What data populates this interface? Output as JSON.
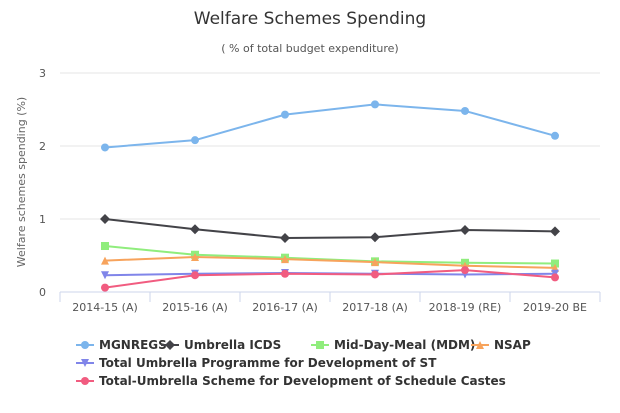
{
  "chart_data": {
    "type": "line",
    "title": "Welfare Schemes Spending",
    "subtitle": "( % of total budget expenditure)",
    "xlabel": "",
    "ylabel": "Welfare schemes spending (%)",
    "ylim": [
      0,
      3
    ],
    "yticks": [
      0,
      1,
      2,
      3
    ],
    "grid": true,
    "legend_position": "bottom",
    "categories": [
      "2014-15 (A)",
      "2015-16 (A)",
      "2016-17 (A)",
      "2017-18 (A)",
      "2018-19 (RE)",
      "2019-20 BE"
    ],
    "series": [
      {
        "name": "MGNREGS",
        "color": "#7cb5ec",
        "marker": "circle",
        "values": [
          1.98,
          2.08,
          2.43,
          2.57,
          2.48,
          2.14
        ]
      },
      {
        "name": "Umbrella ICDS",
        "color": "#434348",
        "marker": "diamond",
        "values": [
          1.0,
          0.86,
          0.74,
          0.75,
          0.85,
          0.83
        ]
      },
      {
        "name": "Mid-Day-Meal (MDM)",
        "color": "#90ed7d",
        "marker": "square",
        "values": [
          0.63,
          0.51,
          0.47,
          0.42,
          0.4,
          0.39
        ]
      },
      {
        "name": "NSAP",
        "color": "#f7a35c",
        "marker": "triangle",
        "values": [
          0.43,
          0.48,
          0.45,
          0.41,
          0.36,
          0.33
        ]
      },
      {
        "name": "Total Umbrella Programme for Development of ST",
        "color": "#8085e9",
        "marker": "triangle-down",
        "values": [
          0.23,
          0.25,
          0.26,
          0.25,
          0.24,
          0.25
        ]
      },
      {
        "name": "Total-Umbrella Scheme for Development of Schedule Castes",
        "color": "#f15c80",
        "marker": "circle",
        "values": [
          0.06,
          0.23,
          0.25,
          0.24,
          0.3,
          0.2
        ]
      }
    ]
  }
}
